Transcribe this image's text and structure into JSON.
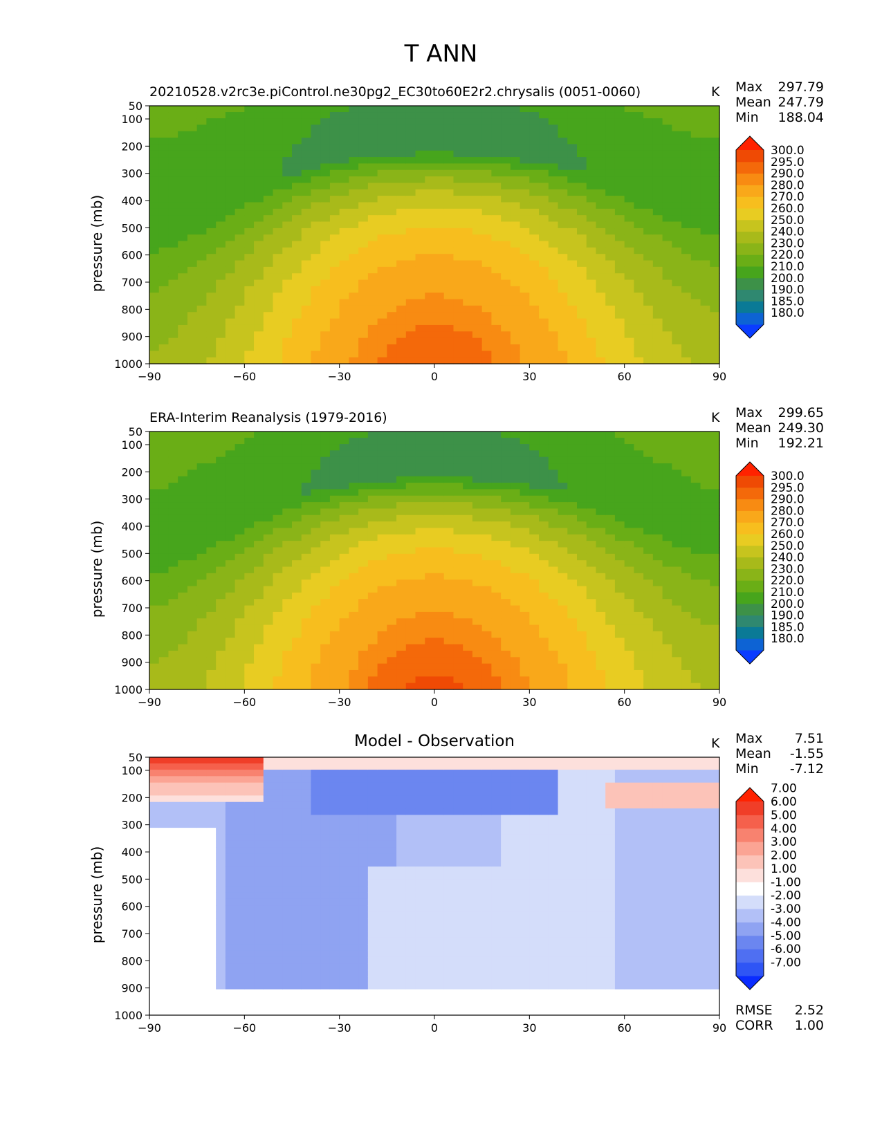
{
  "figure": {
    "title": "T ANN"
  },
  "chart_data": [
    {
      "type": "heatmap",
      "title": "20210528.v2rc3e.piControl.ne30pg2_EC30to60E2r2.chrysalis (0051-0060)",
      "units": "K",
      "xlabel": "",
      "ylabel": "pressure (mb)",
      "xlim": [
        -90,
        90
      ],
      "ylim": [
        1000,
        50
      ],
      "x_ticks": [
        "−90",
        "−60",
        "−30",
        "0",
        "30",
        "60",
        "90"
      ],
      "y_ticks": [
        "50",
        "100",
        "200",
        "300",
        "400",
        "500",
        "600",
        "700",
        "800",
        "900",
        "1000"
      ],
      "stats": {
        "Max": "297.79",
        "Mean": "247.79",
        "Min": "188.04"
      },
      "levels": [
        "180.0",
        "185.0",
        "190.0",
        "200.0",
        "210.0",
        "220.0",
        "230.0",
        "240.0",
        "250.0",
        "260.0",
        "270.0",
        "280.0",
        "290.0",
        "295.0",
        "300.0"
      ],
      "colorbar": [
        "#0a3cff",
        "#0d63d4",
        "#0a7a96",
        "#2f8870",
        "#3d9148",
        "#47a51c",
        "#6aae16",
        "#8ab418",
        "#a8ba1a",
        "#c7c41e",
        "#e8cc22",
        "#f7be1e",
        "#f9a81a",
        "#f88b12",
        "#f4690a",
        "#ef4a04",
        "#ff2200"
      ],
      "field_model": "base"
    },
    {
      "type": "heatmap",
      "title": "ERA-Interim Reanalysis (1979-2016)",
      "units": "K",
      "xlabel": "",
      "ylabel": "pressure (mb)",
      "xlim": [
        -90,
        90
      ],
      "ylim": [
        1000,
        50
      ],
      "x_ticks": [
        "−90",
        "−60",
        "−30",
        "0",
        "30",
        "60",
        "90"
      ],
      "y_ticks": [
        "50",
        "100",
        "200",
        "300",
        "400",
        "500",
        "600",
        "700",
        "800",
        "900",
        "1000"
      ],
      "stats": {
        "Max": "299.65",
        "Mean": "249.30",
        "Min": "192.21"
      },
      "levels": [
        "180.0",
        "185.0",
        "190.0",
        "200.0",
        "210.0",
        "220.0",
        "230.0",
        "240.0",
        "250.0",
        "260.0",
        "270.0",
        "280.0",
        "290.0",
        "295.0",
        "300.0"
      ],
      "colorbar": [
        "#0a3cff",
        "#0d63d4",
        "#0a7a96",
        "#2f8870",
        "#3d9148",
        "#47a51c",
        "#6aae16",
        "#8ab418",
        "#a8ba1a",
        "#c7c41e",
        "#e8cc22",
        "#f7be1e",
        "#f9a81a",
        "#f88b12",
        "#f4690a",
        "#ef4a04",
        "#ff2200"
      ],
      "field_model": "base"
    },
    {
      "type": "heatmap",
      "title": "Model - Observation",
      "units": "K",
      "xlabel": "",
      "ylabel": "pressure (mb)",
      "xlim": [
        -90,
        90
      ],
      "ylim": [
        1000,
        50
      ],
      "x_ticks": [
        "−90",
        "−60",
        "−30",
        "0",
        "30",
        "60",
        "90"
      ],
      "y_ticks": [
        "50",
        "100",
        "200",
        "300",
        "400",
        "500",
        "600",
        "700",
        "800",
        "900",
        "1000"
      ],
      "stats": {
        "Max": "7.51",
        "Mean": "-1.55",
        "Min": "-7.12"
      },
      "extra_stats": {
        "RMSE": "2.52",
        "CORR": "1.00"
      },
      "levels": [
        "-7.00",
        "-6.00",
        "-5.00",
        "-4.00",
        "-3.00",
        "-2.00",
        "-1.00",
        "1.00",
        "2.00",
        "3.00",
        "4.00",
        "5.00",
        "6.00",
        "7.00"
      ],
      "colorbar": [
        "#0a2cff",
        "#2f55f5",
        "#4f6ff2",
        "#6b86f0",
        "#8fa3f2",
        "#b2c0f7",
        "#d4ddfa",
        "#ffffff",
        "#fde0dc",
        "#fcc3b8",
        "#fba494",
        "#f8826f",
        "#f5604c",
        "#f03e28",
        "#ff2200"
      ],
      "field_model": "diff"
    }
  ]
}
